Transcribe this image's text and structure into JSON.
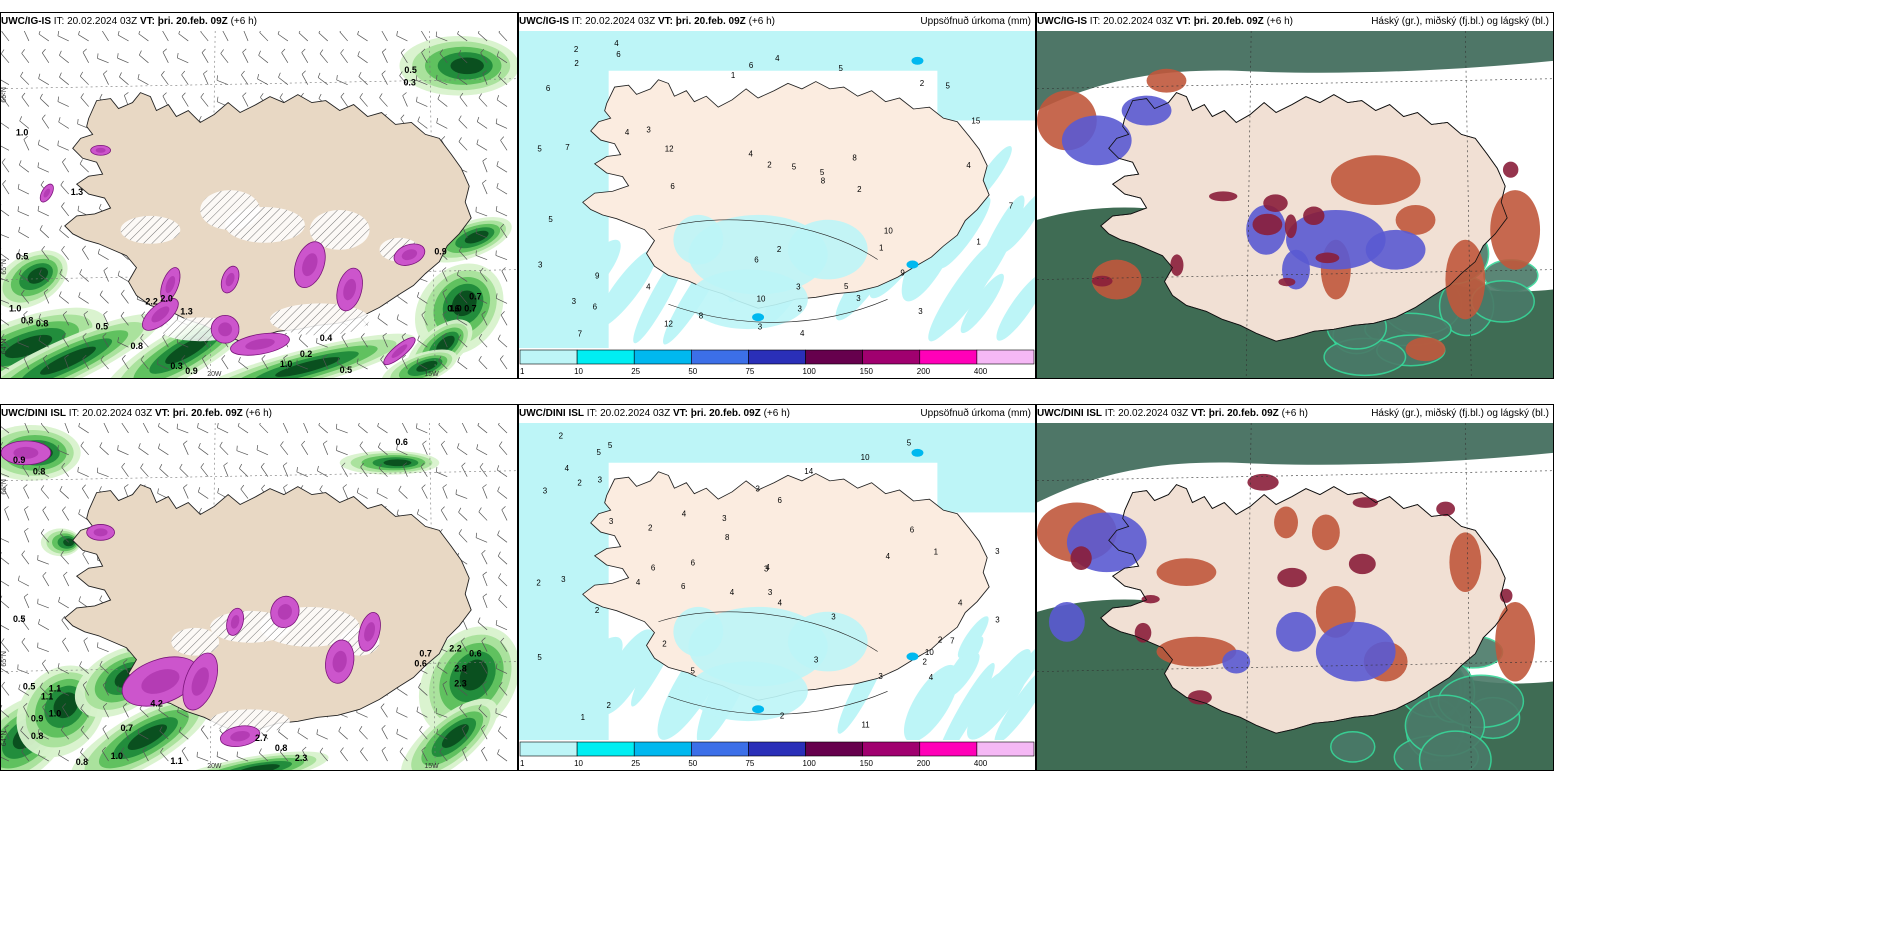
{
  "panels": {
    "top_wind": {
      "model": "UWC/IG-IS",
      "it_label": "IT:",
      "it_value": "20.02.2024 03Z",
      "vt_label": "VT:",
      "vt_value": "þri. 20.feb. 09Z",
      "lead": "(+6 h)",
      "right_label": ""
    },
    "top_precip": {
      "model": "UWC/IG-IS",
      "it_label": "IT:",
      "it_value": "20.02.2024 03Z",
      "vt_label": "VT:",
      "vt_value": "þri. 20.feb. 09Z",
      "lead": "(+6 h)",
      "right_label": "Uppsöfnuð úrkoma (mm)"
    },
    "top_cloud": {
      "model": "UWC/IG-IS",
      "it_label": "IT:",
      "it_value": "20.02.2024 03Z",
      "vt_label": "VT:",
      "vt_value": "þri. 20.feb. 09Z",
      "lead": "(+6 h)",
      "right_label": "Háský (gr.), miðský (fj.bl.) og lágský (bl.)"
    },
    "bot_wind": {
      "model": "UWC/DINI ISL",
      "it_label": "IT:",
      "it_value": "20.02.2024 03Z",
      "vt_label": "VT:",
      "vt_value": "þri. 20.feb. 09Z",
      "lead": "(+6 h)",
      "right_label": ""
    },
    "bot_precip": {
      "model": "UWC/DINI ISL",
      "it_label": "IT:",
      "it_value": "20.02.2024 03Z",
      "vt_label": "VT:",
      "vt_value": "þri. 20.feb. 09Z",
      "lead": "(+6 h)",
      "right_label": "Uppsöfnuð úrkoma (mm)"
    },
    "bot_cloud": {
      "model": "UWC/DINI ISL",
      "it_label": "IT:",
      "it_value": "20.02.2024 03Z",
      "vt_label": "VT:",
      "vt_value": "þri. 20.feb. 09Z",
      "lead": "(+6 h)",
      "right_label": "Háský (gr.), miðský (fj.bl.) og lágský (bl.)"
    }
  },
  "precip_legend": {
    "ticks": [
      "1",
      "10",
      "25",
      "50",
      "75",
      "100",
      "150",
      "200",
      "400"
    ],
    "colors": [
      "#bdf5f7",
      "#00eef2",
      "#00b8ef",
      "#3c6fe8",
      "#2a2fb8",
      "#66004d",
      "#a0006f",
      "#ff00b8",
      "#f5b8f5"
    ]
  },
  "grid_labels": {
    "lat66": "66°N",
    "lat65": "65°N",
    "lat64": "64°N",
    "lon20": "20W",
    "lon15": "15W"
  },
  "wind_labels": {
    "top": [
      "0.5",
      "0.3",
      "1.0",
      "0.7",
      "1.3",
      "0.5",
      "1.0",
      "0.8",
      "0.8",
      "0.5",
      "0.8",
      "2.2",
      "2.0",
      "1.3",
      "0.3",
      "0.9",
      "1.0",
      "0.2",
      "0.4",
      "0.5",
      "1.0",
      "0.7",
      "0.9",
      "0.6"
    ],
    "bot": [
      "0.6",
      "0.9",
      "0.8",
      "0.5",
      "0.5",
      "1.1",
      "1.0",
      "0.9",
      "0.8",
      "1.0",
      "0.8",
      "0.7",
      "1.1",
      "2.7",
      "0.8",
      "2.3",
      "0.7",
      "2.2",
      "2.8",
      "0.6",
      "1.1",
      "4.2",
      "2.3",
      "0.6"
    ]
  },
  "precip_numbers": {
    "top": [
      "12",
      "5",
      "5",
      "7",
      "10",
      "8",
      "9",
      "15",
      "6",
      "1",
      "3",
      "4",
      "6",
      "2",
      "3",
      "5",
      "4",
      "6",
      "7",
      "3",
      "2",
      "4",
      "5",
      "1",
      "2",
      "3",
      "6",
      "8",
      "10",
      "12",
      "3",
      "2",
      "4",
      "5",
      "4",
      "3",
      "5",
      "6",
      "2",
      "1",
      "3",
      "4",
      "2",
      "3",
      "4",
      "5",
      "6",
      "7",
      "8",
      "9"
    ],
    "bot": [
      "14",
      "3",
      "8",
      "6",
      "10",
      "11",
      "6",
      "4",
      "3",
      "2",
      "1",
      "4",
      "2",
      "5",
      "3",
      "7",
      "5",
      "4",
      "3",
      "6",
      "2",
      "4",
      "2",
      "3",
      "5",
      "4",
      "3",
      "2",
      "1",
      "3",
      "4",
      "2",
      "6",
      "3",
      "5",
      "4",
      "2",
      "3",
      "10",
      "3",
      "2",
      "4",
      "5",
      "3",
      "6",
      "2",
      "4",
      "3",
      "2",
      "3"
    ]
  }
}
